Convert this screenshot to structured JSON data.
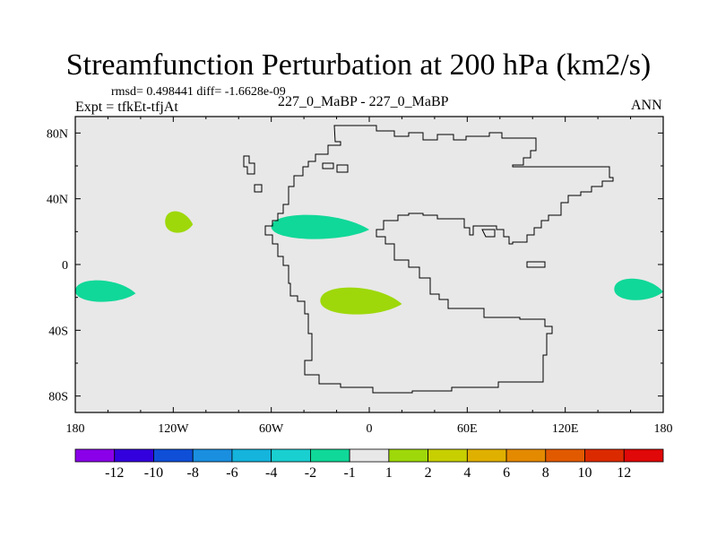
{
  "title": "Streamfunction Perturbation at 200 hPa (km2/s)",
  "stats": "rmsd= 0.498441 diff= -1.6628e-09",
  "experiment": "Expt = tfkEt-tfjAt",
  "subtitle": "227_0_MaBP - 227_0_MaBP",
  "season": "ANN",
  "chart_data": {
    "type": "heatmap",
    "title": "Streamfunction Perturbation at 200 hPa (km2/s)",
    "xlabel": "",
    "ylabel": "",
    "x_ticks": [
      "180",
      "120W",
      "60W",
      "0",
      "60E",
      "120E",
      "180"
    ],
    "y_ticks": [
      "80N",
      "40N",
      "0",
      "40S",
      "80S"
    ],
    "xlim": [
      -180,
      180
    ],
    "ylim": [
      -90,
      90
    ],
    "background_bin": "-1 to 1",
    "colorbar": {
      "labels": [
        "-12",
        "-10",
        "-8",
        "-6",
        "-4",
        "-2",
        "-1",
        "1",
        "2",
        "4",
        "6",
        "8",
        "10",
        "12"
      ],
      "colors": [
        "#8a00e8",
        "#3300dd",
        "#0f4fd8",
        "#1a8fe0",
        "#14b4dc",
        "#1acfd0",
        "#10d898",
        "#e8e8e8",
        "#9ed80a",
        "#c8cf00",
        "#e0b000",
        "#e48a00",
        "#e25a00",
        "#dc2a00",
        "#e00808"
      ]
    },
    "features": [
      {
        "name": "positive anomaly",
        "color": "#9ed80a",
        "value_bin": "1 to 2",
        "lon": [
          -125,
          -108
        ],
        "lat": [
          18,
          34
        ]
      },
      {
        "name": "negative anomaly",
        "color": "#10d898",
        "value_bin": "-2 to -1",
        "lon": [
          -60,
          0
        ],
        "lat": [
          14,
          32
        ]
      },
      {
        "name": "positive anomaly",
        "color": "#9ed80a",
        "value_bin": "1 to 2",
        "lon": [
          -30,
          20
        ],
        "lat": [
          -32,
          -12
        ]
      },
      {
        "name": "negative anomaly",
        "color": "#10d898",
        "value_bin": "-2 to -1",
        "lon": [
          -180,
          -143
        ],
        "lat": [
          -24,
          -8
        ]
      },
      {
        "name": "negative anomaly",
        "color": "#10d898",
        "value_bin": "-2 to -1",
        "lon": [
          150,
          180
        ],
        "lat": [
          -23,
          -7
        ]
      }
    ]
  }
}
